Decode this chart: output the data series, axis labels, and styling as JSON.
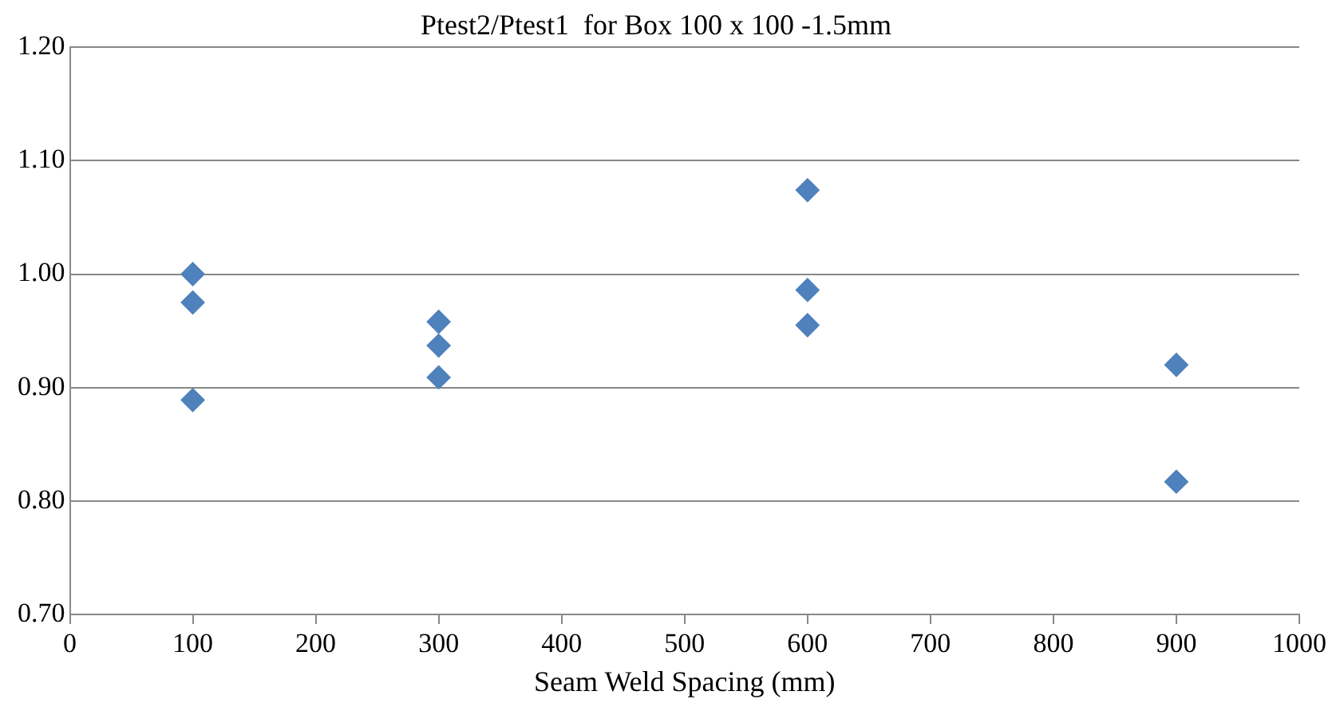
{
  "chart_data": {
    "type": "scatter",
    "title": "Ptest2/Ptest1  for Box 100 x 100 -1.5mm",
    "xlabel": "Seam Weld Spacing (mm)",
    "x": [
      100,
      100,
      100,
      300,
      300,
      300,
      600,
      600,
      600,
      900,
      900
    ],
    "series": [
      {
        "color": "#4f81bd",
        "values": [
          1.0,
          0.975,
          0.889,
          0.958,
          0.937,
          0.909,
          1.074,
          0.986,
          0.955,
          0.92,
          0.817
        ]
      }
    ],
    "xlim": [
      0,
      1000
    ],
    "xticks": [
      0,
      100,
      200,
      300,
      400,
      500,
      600,
      700,
      800,
      900,
      1000
    ],
    "ylim": [
      0.7,
      1.2
    ],
    "yticks": [
      {
        "value": 0.7,
        "label": "0.70"
      },
      {
        "value": 0.8,
        "label": "0.80"
      },
      {
        "value": 0.9,
        "label": "0.90"
      },
      {
        "value": 1.0,
        "label": "1.00"
      },
      {
        "value": 1.1,
        "label": "1.10"
      },
      {
        "value": 1.2,
        "label": "1.20"
      }
    ],
    "grid": "y",
    "legend": false,
    "marker": "diamond"
  }
}
